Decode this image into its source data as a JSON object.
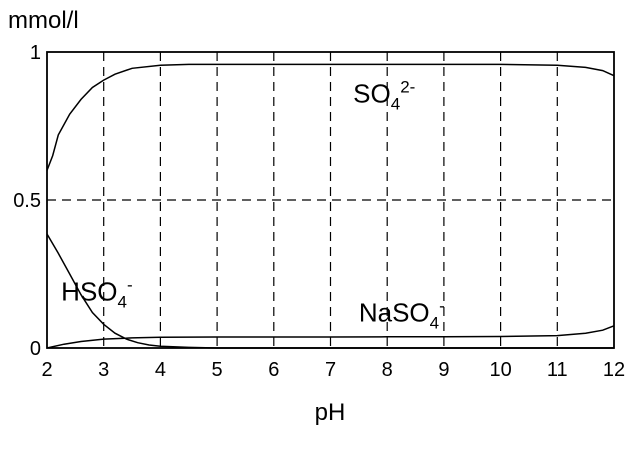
{
  "chart_data": {
    "type": "line",
    "xlabel": "pH",
    "ylabel": "mmol/l",
    "xlim": [
      2,
      12
    ],
    "ylim": [
      0,
      1
    ],
    "xticks": [
      "2",
      "3",
      "4",
      "5",
      "6",
      "7",
      "8",
      "9",
      "10",
      "11",
      "12"
    ],
    "yticks": [
      "0",
      "0.5",
      "1"
    ],
    "grid": true,
    "series": [
      {
        "name": "SO₄²⁻",
        "label_parts": [
          "SO",
          "4",
          "2-"
        ],
        "x": [
          2,
          2.1,
          2.2,
          2.4,
          2.6,
          2.8,
          3,
          3.2,
          3.5,
          4,
          4.5,
          5,
          6,
          7,
          8,
          9,
          10,
          11,
          11.5,
          11.8,
          12
        ],
        "y": [
          0.6,
          0.65,
          0.72,
          0.79,
          0.84,
          0.88,
          0.905,
          0.925,
          0.945,
          0.955,
          0.958,
          0.958,
          0.958,
          0.958,
          0.958,
          0.958,
          0.958,
          0.955,
          0.948,
          0.937,
          0.92
        ]
      },
      {
        "name": "HSO₄⁻",
        "label_parts": [
          "HSO",
          "4",
          "-"
        ],
        "x": [
          2,
          2.2,
          2.4,
          2.6,
          2.8,
          3,
          3.2,
          3.4,
          3.6,
          3.8,
          4,
          4.5,
          5,
          12
        ],
        "y": [
          0.385,
          0.32,
          0.25,
          0.18,
          0.12,
          0.08,
          0.05,
          0.03,
          0.018,
          0.01,
          0.006,
          0.002,
          0,
          0
        ]
      },
      {
        "name": "NaSO₄⁻",
        "label_parts": [
          "NaSO",
          "4",
          "-"
        ],
        "x": [
          2,
          2.3,
          2.6,
          3,
          3.5,
          4,
          5,
          6,
          7,
          8,
          9,
          10,
          11,
          11.5,
          11.8,
          12
        ],
        "y": [
          0,
          0.013,
          0.022,
          0.03,
          0.034,
          0.036,
          0.037,
          0.037,
          0.037,
          0.038,
          0.038,
          0.039,
          0.042,
          0.05,
          0.06,
          0.075
        ]
      }
    ]
  }
}
